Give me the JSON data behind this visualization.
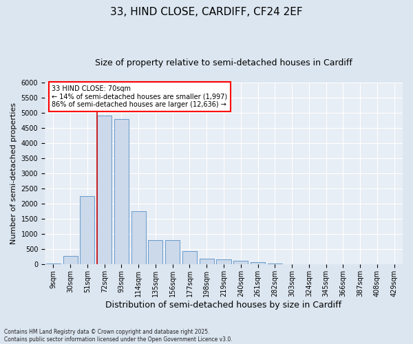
{
  "title_line1": "33, HIND CLOSE, CARDIFF, CF24 2EF",
  "title_line2": "Size of property relative to semi-detached houses in Cardiff",
  "xlabel": "Distribution of semi-detached houses by size in Cardiff",
  "ylabel": "Number of semi-detached properties",
  "footnote": "Contains HM Land Registry data © Crown copyright and database right 2025.\nContains public sector information licensed under the Open Government Licence v3.0.",
  "categories": [
    "9sqm",
    "30sqm",
    "51sqm",
    "72sqm",
    "93sqm",
    "114sqm",
    "135sqm",
    "156sqm",
    "177sqm",
    "198sqm",
    "219sqm",
    "240sqm",
    "261sqm",
    "282sqm",
    "303sqm",
    "324sqm",
    "345sqm",
    "366sqm",
    "387sqm",
    "408sqm",
    "429sqm"
  ],
  "values": [
    25,
    280,
    2250,
    4900,
    4800,
    1750,
    800,
    800,
    430,
    200,
    160,
    120,
    70,
    40,
    20,
    10,
    5,
    3,
    2,
    1,
    1
  ],
  "bar_color": "#ccd9ea",
  "bar_edge_color": "#6699cc",
  "vline_color": "#cc0000",
  "vline_x_index": 3,
  "annotation_box_text": "33 HIND CLOSE: 70sqm\n← 14% of semi-detached houses are smaller (1,997)\n86% of semi-detached houses are larger (12,636) →",
  "ylim": [
    0,
    6000
  ],
  "yticks": [
    0,
    500,
    1000,
    1500,
    2000,
    2500,
    3000,
    3500,
    4000,
    4500,
    5000,
    5500,
    6000
  ],
  "bg_color": "#dce6f0",
  "plot_bg_color": "#e8eef5",
  "grid_color": "#ffffff",
  "title_fontsize": 11,
  "subtitle_fontsize": 9,
  "xlabel_fontsize": 9,
  "ylabel_fontsize": 8,
  "tick_fontsize": 7,
  "ann_fontsize": 7
}
